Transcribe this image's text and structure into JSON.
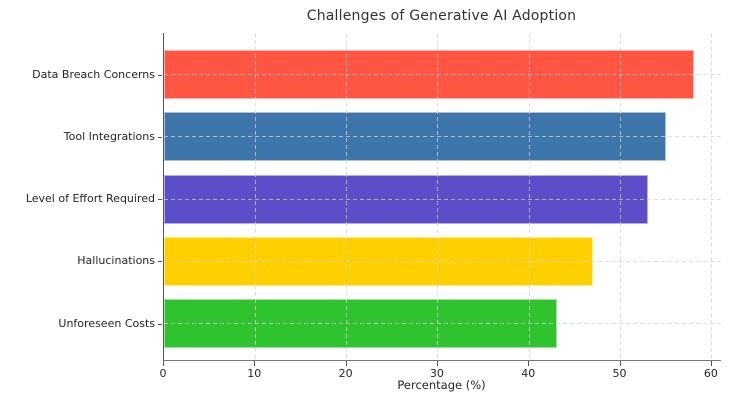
{
  "chart_data": {
    "type": "bar",
    "orientation": "horizontal",
    "title": "Challenges of Generative AI Adoption",
    "xlabel": "Percentage (%)",
    "ylabel": "",
    "categories": [
      "Data Breach Concerns",
      "Tool Integrations",
      "Level of Effort Required",
      "Hallucinations",
      "Unforeseen Costs"
    ],
    "values": [
      58,
      55,
      53,
      47,
      43
    ],
    "bar_colors": [
      "#ff5542",
      "#3e76ab",
      "#5c4ec9",
      "#ffd000",
      "#2fc42f"
    ],
    "xticks": [
      0,
      10,
      20,
      30,
      40,
      50,
      60
    ],
    "xlim": [
      0,
      61
    ],
    "grid": "dashed",
    "grid_color": "#d3d3d3",
    "spine_color": "#555555",
    "title_color": "#333333",
    "tick_label_color": "#262626"
  }
}
